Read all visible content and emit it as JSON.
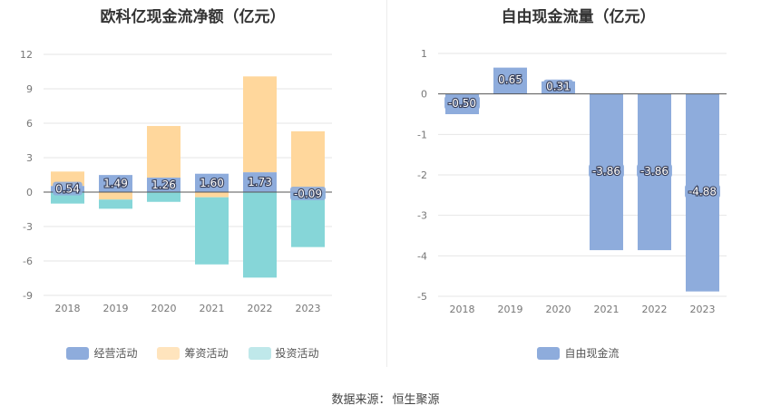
{
  "charts": [
    {
      "id": "net",
      "title": "欧科亿现金流净额（亿元）",
      "legend": [
        "经营活动",
        "筹资活动",
        "投资活动"
      ],
      "colors": {
        "operating": "#8eacdc",
        "financing": "#ffd79c",
        "investing": "#86d6d8"
      },
      "legend_colors": [
        "#8eacdc",
        "#ffe4bd",
        "#bfe8ea"
      ]
    },
    {
      "id": "fcf",
      "title": "自由现金流量（亿元）",
      "legend": [
        "自由现金流"
      ],
      "colors": {
        "fcf": "#8eacdc"
      },
      "legend_colors": [
        "#8eacdc"
      ]
    }
  ],
  "chart_data": [
    {
      "type": "bar",
      "stacked": true,
      "title": "欧科亿现金流净额（亿元）",
      "categories": [
        "2018",
        "2019",
        "2020",
        "2021",
        "2022",
        "2023"
      ],
      "ylim": [
        -9,
        12
      ],
      "yticks": [
        12,
        9,
        6,
        3,
        0,
        -3,
        -6,
        -9
      ],
      "yticklabels": [
        "12",
        "9",
        "6",
        "3",
        "0",
        "-3",
        "-6",
        "-9"
      ],
      "grid": true,
      "legend_position": "bottom",
      "series": [
        {
          "name": "经营活动",
          "values": [
            0.54,
            1.49,
            1.26,
            1.6,
            1.73,
            -0.09
          ],
          "labels": [
            "0.54",
            "1.49",
            "1.26",
            "1.60",
            "1.73",
            "-0.09"
          ]
        },
        {
          "name": "筹资活动",
          "values": [
            1.25,
            -0.65,
            4.5,
            -0.45,
            8.35,
            5.3
          ]
        },
        {
          "name": "投资活动",
          "values": [
            -1.0,
            -0.8,
            -0.85,
            -5.85,
            -7.45,
            -4.7
          ]
        }
      ]
    },
    {
      "type": "bar",
      "title": "自由现金流量（亿元）",
      "categories": [
        "2018",
        "2019",
        "2020",
        "2021",
        "2022",
        "2023"
      ],
      "ylim": [
        -5,
        1
      ],
      "yticks": [
        1,
        0,
        -1,
        -2,
        -3,
        -4,
        -5
      ],
      "yticklabels": [
        "1",
        "0",
        "-1",
        "-2",
        "-3",
        "-4",
        "-5"
      ],
      "grid": true,
      "legend_position": "bottom",
      "series": [
        {
          "name": "自由现金流",
          "values": [
            -0.5,
            0.65,
            0.31,
            -3.86,
            -3.86,
            -4.88
          ],
          "labels": [
            "-0.50",
            "0.65",
            "0.31",
            "-3.86",
            "-3.86",
            "-4.88"
          ]
        }
      ]
    }
  ],
  "footer": {
    "prefix": "数据来源：",
    "source": "恒生聚源"
  }
}
